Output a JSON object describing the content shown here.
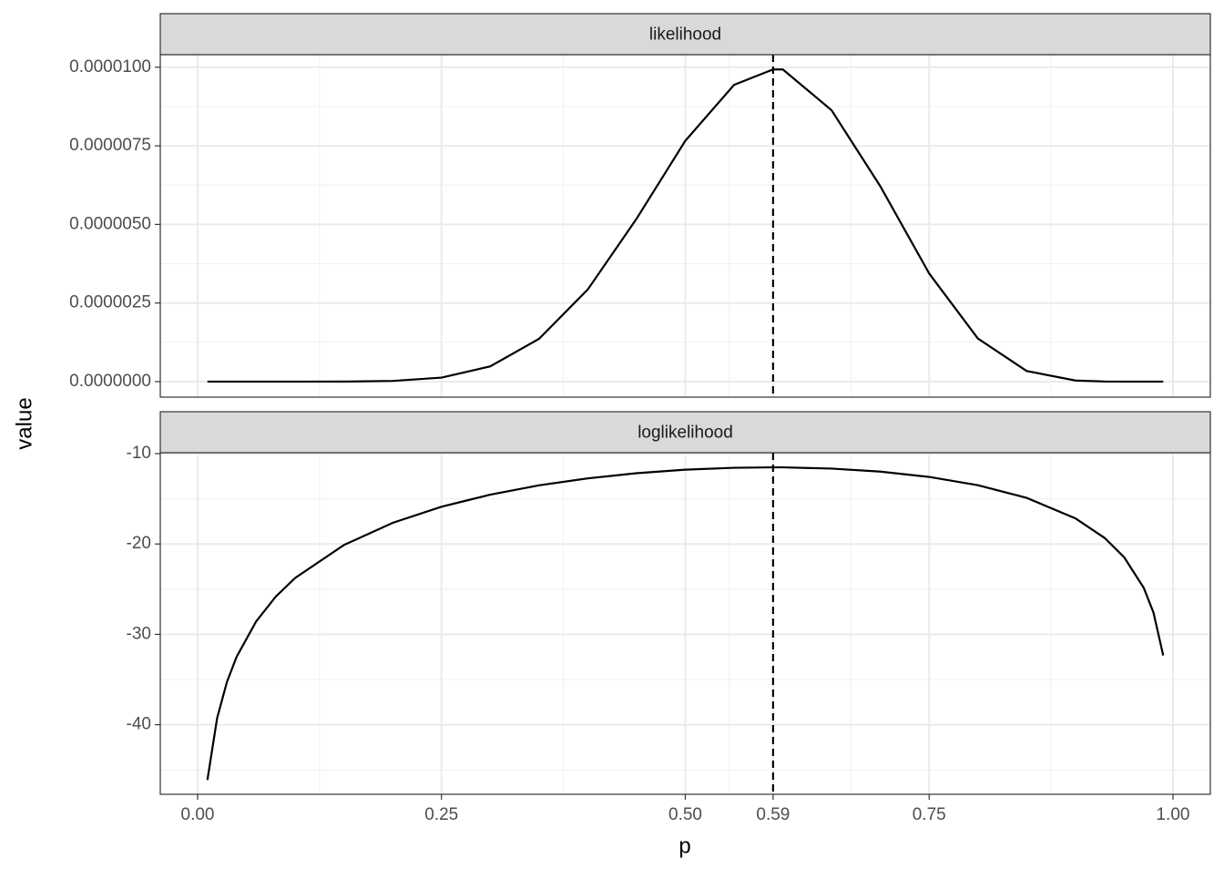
{
  "chart_data": {
    "type": "line",
    "x_label": "p",
    "y_label": "value",
    "x": [
      0.01,
      0.02,
      0.03,
      0.04,
      0.06,
      0.08,
      0.1,
      0.15,
      0.2,
      0.25,
      0.3,
      0.35,
      0.4,
      0.45,
      0.5,
      0.55,
      0.59,
      0.6,
      0.65,
      0.7,
      0.75,
      0.8,
      0.85,
      0.9,
      0.93,
      0.95,
      0.97,
      0.98,
      0.99
    ],
    "xlim": [
      -0.0383,
      1.0383
    ],
    "xticks": [
      {
        "value": 0,
        "label": "0.00"
      },
      0.25,
      {
        "value": 0.5,
        "label": "0.50"
      },
      0.59,
      0.75,
      {
        "value": 1,
        "label": "1.00"
      }
    ],
    "xminor": [
      0.125,
      0.375,
      0.545,
      0.67,
      0.875
    ],
    "vline": 0.59,
    "color": "#000000",
    "grid": true,
    "facets": [
      {
        "title": "likelihood",
        "values": [
          0,
          0,
          0,
          0,
          0,
          0,
          0,
          1.85e-09,
          2.14e-08,
          1.27e-07,
          4.85e-07,
          1.36e-06,
          2.93e-06,
          5.18e-06,
          7.66e-06,
          9.44e-06,
          9.93e-06,
          9.93e-06,
          8.63e-06,
          6.21e-06,
          3.44e-06,
          1.37e-06,
          3.38e-07,
          3.49e-08,
          4e-09,
          4.7e-10,
          0,
          0,
          0
        ],
        "ylim": [
          -4.94e-07,
          1.04e-05
        ],
        "yticks": [
          {
            "value": 0,
            "label": "0.0000000"
          },
          {
            "value": 2.5e-06,
            "label": "0.0000025"
          },
          {
            "value": 5e-06,
            "label": "0.0000050"
          },
          {
            "value": 7.5e-06,
            "label": "0.0000075"
          },
          {
            "value": 1e-05,
            "label": "0.0000100"
          }
        ],
        "yminor": [
          1.25e-06,
          3.75e-06,
          6.25e-06,
          8.75e-06
        ]
      },
      {
        "title": "loglikelihood",
        "values": [
          -46.12,
          -39.26,
          -35.28,
          -32.47,
          -28.57,
          -25.84,
          -23.76,
          -20.11,
          -17.66,
          -15.88,
          -14.54,
          -13.51,
          -12.74,
          -12.17,
          -11.78,
          -11.57,
          -11.52,
          -11.52,
          -11.66,
          -11.99,
          -12.58,
          -13.5,
          -14.9,
          -17.17,
          -19.34,
          -21.48,
          -24.85,
          -27.59,
          -32.34
        ],
        "ylim": [
          -47.7,
          -9.9
        ],
        "yticks": [
          -10,
          -20,
          -30,
          -40
        ],
        "yminor": [
          -15,
          -25,
          -35,
          -45
        ]
      }
    ]
  }
}
